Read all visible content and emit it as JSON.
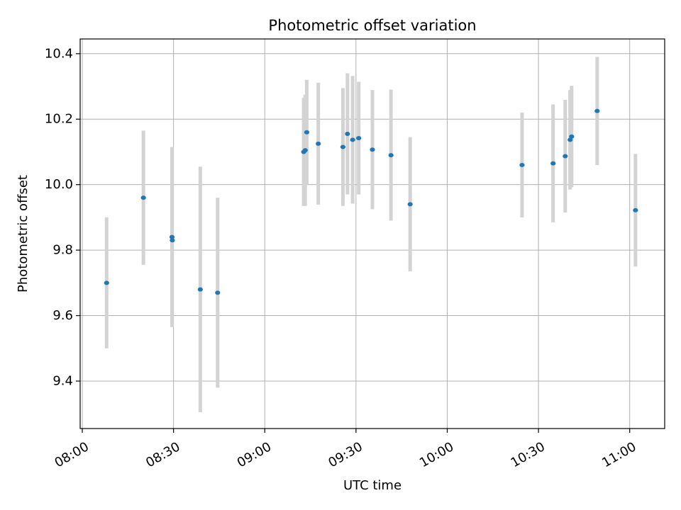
{
  "chart_data": {
    "type": "scatter",
    "title": "Photometric offset variation",
    "xlabel": "UTC time",
    "ylabel": "Photometric offset",
    "x_ticks": [
      "08:00",
      "08:30",
      "09:00",
      "09:30",
      "10:00",
      "10:30",
      "11:00"
    ],
    "x_tick_minutes": [
      480,
      510,
      540,
      570,
      600,
      630,
      660
    ],
    "xlim": [
      "07:59",
      "11:11"
    ],
    "xlim_minutes": [
      479.3,
      671.5
    ],
    "y_ticks": [
      9.4,
      9.6,
      9.8,
      10.0,
      10.2,
      10.4
    ],
    "y_tick_labels": [
      "9.4",
      "9.6",
      "9.8",
      "10.0",
      "10.2",
      "10.4"
    ],
    "ylim": [
      9.255,
      10.445
    ],
    "grid": true,
    "marker_color": "#1f77b4",
    "errorbar_color": "#d3d3d3",
    "points": [
      {
        "x": "08:08",
        "x_minutes": 488.0,
        "y": 9.7,
        "err": 0.2
      },
      {
        "x": "08:20",
        "x_minutes": 500.1,
        "y": 9.96,
        "err": 0.205
      },
      {
        "x": "08:29",
        "x_minutes": 509.5,
        "y": 9.84,
        "err": 0.275
      },
      {
        "x": "08:30",
        "x_minutes": 509.6,
        "y": 9.83,
        "err": 0.0
      },
      {
        "x": "08:39",
        "x_minutes": 518.8,
        "y": 9.68,
        "err": 0.375
      },
      {
        "x": "08:45",
        "x_minutes": 524.5,
        "y": 9.67,
        "err": 0.29
      },
      {
        "x": "09:13",
        "x_minutes": 552.8,
        "y": 10.1,
        "err": 0.165
      },
      {
        "x": "09:13",
        "x_minutes": 553.3,
        "y": 10.105,
        "err": 0.17
      },
      {
        "x": "09:14",
        "x_minutes": 553.8,
        "y": 10.16,
        "err": 0.16
      },
      {
        "x": "09:18",
        "x_minutes": 557.6,
        "y": 10.125,
        "err": 0.186
      },
      {
        "x": "09:26",
        "x_minutes": 565.7,
        "y": 10.115,
        "err": 0.18
      },
      {
        "x": "09:27",
        "x_minutes": 567.2,
        "y": 10.155,
        "err": 0.185
      },
      {
        "x": "09:29",
        "x_minutes": 568.9,
        "y": 10.137,
        "err": 0.195
      },
      {
        "x": "09:31",
        "x_minutes": 570.9,
        "y": 10.142,
        "err": 0.172
      },
      {
        "x": "09:36",
        "x_minutes": 575.4,
        "y": 10.107,
        "err": 0.182
      },
      {
        "x": "09:42",
        "x_minutes": 581.5,
        "y": 10.09,
        "err": 0.2
      },
      {
        "x": "09:48",
        "x_minutes": 587.8,
        "y": 9.94,
        "err": 0.205
      },
      {
        "x": "10:25",
        "x_minutes": 624.6,
        "y": 10.06,
        "err": 0.16
      },
      {
        "x": "10:35",
        "x_minutes": 634.8,
        "y": 10.065,
        "err": 0.18
      },
      {
        "x": "10:39",
        "x_minutes": 638.8,
        "y": 10.087,
        "err": 0.172
      },
      {
        "x": "10:40",
        "x_minutes": 640.4,
        "y": 10.137,
        "err": 0.152
      },
      {
        "x": "10:41",
        "x_minutes": 640.9,
        "y": 10.147,
        "err": 0.155
      },
      {
        "x": "10:49",
        "x_minutes": 649.3,
        "y": 10.225,
        "err": 0.165
      },
      {
        "x": "11:02",
        "x_minutes": 661.9,
        "y": 9.922,
        "err": 0.172
      }
    ]
  }
}
